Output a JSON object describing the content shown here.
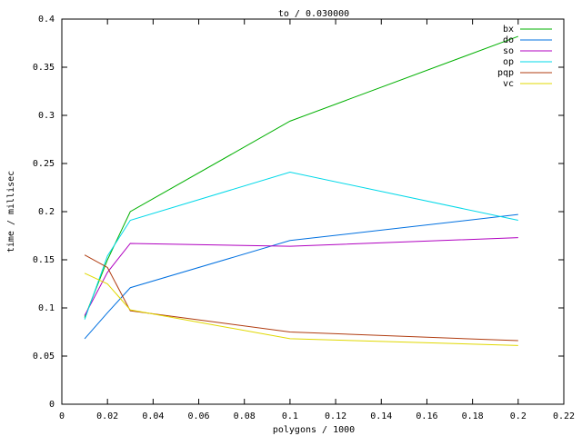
{
  "chart_data": {
    "type": "line",
    "title": "to / 0.030000",
    "x_label": "polygons / 1000",
    "y_label": "time / millisec",
    "x": [
      0.01,
      0.02,
      0.03,
      0.1,
      0.2
    ],
    "series": [
      {
        "name": "bx",
        "color": "#00b000",
        "values": [
          0.09,
          0.15,
          0.2,
          0.294,
          0.382
        ]
      },
      {
        "name": "do",
        "color": "#0070e0",
        "values": [
          0.068,
          0.095,
          0.121,
          0.17,
          0.197
        ]
      },
      {
        "name": "so",
        "color": "#b000c0",
        "values": [
          0.092,
          0.137,
          0.167,
          0.164,
          0.173
        ]
      },
      {
        "name": "op",
        "color": "#00d8e8",
        "values": [
          0.088,
          0.154,
          0.191,
          0.241,
          0.191
        ]
      },
      {
        "name": "pqp",
        "color": "#b03c10",
        "values": [
          0.155,
          0.142,
          0.097,
          0.075,
          0.066
        ]
      },
      {
        "name": "vc",
        "color": "#e0d800",
        "values": [
          0.136,
          0.125,
          0.098,
          0.068,
          0.061
        ]
      }
    ],
    "xlim": [
      0,
      0.22
    ],
    "xticks": [
      0,
      0.02,
      0.04,
      0.06,
      0.08,
      0.1,
      0.12,
      0.14,
      0.16,
      0.18,
      0.2,
      0.22
    ],
    "ylim": [
      0,
      0.4
    ],
    "yticks": [
      0,
      0.05,
      0.1,
      0.15,
      0.2,
      0.25,
      0.3,
      0.35,
      0.4
    ],
    "grid": false,
    "legend": "top-right"
  }
}
